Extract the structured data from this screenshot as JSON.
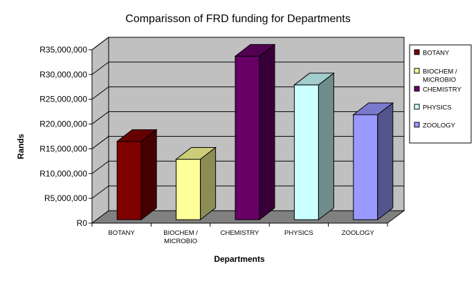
{
  "chart_data": {
    "type": "bar",
    "title": "Comparisson of FRD funding for Departments",
    "xlabel": "Departments",
    "ylabel": "Rands",
    "ylim": [
      0,
      35000000
    ],
    "grid": true,
    "legend_position": "right",
    "y_ticks": [
      "R0",
      "R5,000,000",
      "R10,000,000",
      "R15,000,000",
      "R20,000,000",
      "R25,000,000",
      "R30,000,000",
      "R35,000,000"
    ],
    "categories": [
      {
        "lines": [
          "BOTANY"
        ]
      },
      {
        "lines": [
          "BIOCHEM /",
          "MICROBIO"
        ]
      },
      {
        "lines": [
          "CHEMISTRY"
        ]
      },
      {
        "lines": [
          "PHYSICS"
        ]
      },
      {
        "lines": [
          "ZOOLOGY"
        ]
      }
    ],
    "series": [
      {
        "name": "BOTANY",
        "category_index": 0,
        "value": 15800000,
        "color": "#800000"
      },
      {
        "name": "BIOCHEM / MICROBIO",
        "category_index": 1,
        "value": 12200000,
        "color": "#FFFF99"
      },
      {
        "name": "CHEMISTRY",
        "category_index": 2,
        "value": 33000000,
        "color": "#660066"
      },
      {
        "name": "PHYSICS",
        "category_index": 3,
        "value": 27200000,
        "color": "#CCFFFF"
      },
      {
        "name": "ZOOLOGY",
        "category_index": 4,
        "value": 21200000,
        "color": "#9999FF"
      }
    ],
    "legend_lines": [
      [
        "BOTANY"
      ],
      [
        "BIOCHEM /",
        "MICROBIO"
      ],
      [
        "CHEMISTRY"
      ],
      [
        "PHYSICS"
      ],
      [
        "ZOOLOGY"
      ]
    ],
    "colors": {
      "plot_wall": "#C0C0C0",
      "floor": "#808080",
      "gridline": "#000000"
    }
  }
}
